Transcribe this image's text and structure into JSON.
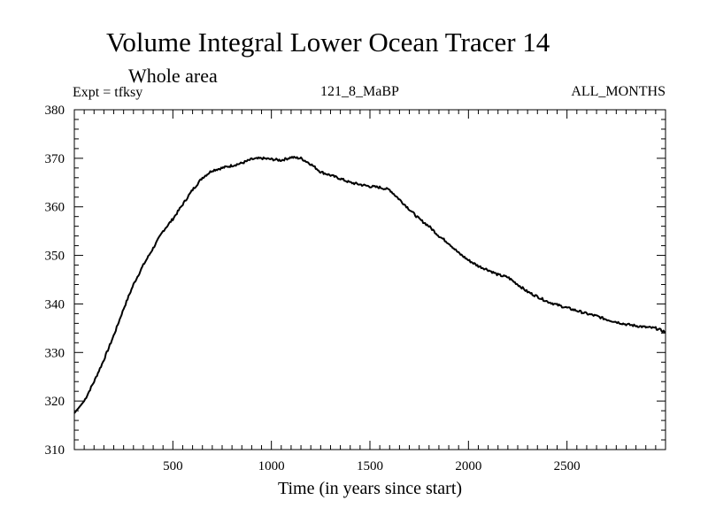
{
  "chart_data": {
    "type": "line",
    "title": "Volume Integral Lower Ocean Tracer 14",
    "subtitle": "Whole area",
    "experiment": "Expt = tfksy",
    "period": "121_8_MaBP",
    "months": "ALL_MONTHS",
    "xlabel": "Time (in years since start)",
    "ylabel": "",
    "xlim": [
      0,
      3000
    ],
    "ylim": [
      310,
      380
    ],
    "xticks": [
      500,
      1000,
      1500,
      2000,
      2500
    ],
    "yticks": [
      310,
      320,
      330,
      340,
      350,
      360,
      370,
      380
    ],
    "grid": false,
    "series": [
      {
        "name": "Lower Ocean Tracer 14",
        "x": [
          0,
          50,
          100,
          150,
          200,
          250,
          300,
          350,
          400,
          450,
          500,
          550,
          600,
          650,
          700,
          750,
          800,
          850,
          900,
          950,
          1000,
          1050,
          1100,
          1150,
          1200,
          1250,
          1300,
          1350,
          1400,
          1450,
          1500,
          1550,
          1600,
          1650,
          1700,
          1750,
          1800,
          1850,
          1900,
          1950,
          2000,
          2050,
          2100,
          2150,
          2200,
          2250,
          2300,
          2350,
          2400,
          2450,
          2500,
          2550,
          2600,
          2650,
          2700,
          2750,
          2800,
          2850,
          2900,
          2950,
          3000
        ],
        "y": [
          317.5,
          320.0,
          324.0,
          328.5,
          333.5,
          339.0,
          344.0,
          348.0,
          351.5,
          355.0,
          357.5,
          360.5,
          363.5,
          366.0,
          367.5,
          368.0,
          368.5,
          369.0,
          369.8,
          370.0,
          369.8,
          369.6,
          370.2,
          370.0,
          368.8,
          367.2,
          366.5,
          365.8,
          365.0,
          364.6,
          364.2,
          364.0,
          363.5,
          361.5,
          359.5,
          357.5,
          356.0,
          354.0,
          352.5,
          350.5,
          349.0,
          347.8,
          347.0,
          346.0,
          345.5,
          344.0,
          342.5,
          341.5,
          340.5,
          339.8,
          339.2,
          338.6,
          338.0,
          337.5,
          336.8,
          336.3,
          335.8,
          335.5,
          335.2,
          335.0,
          334.2
        ]
      }
    ]
  }
}
